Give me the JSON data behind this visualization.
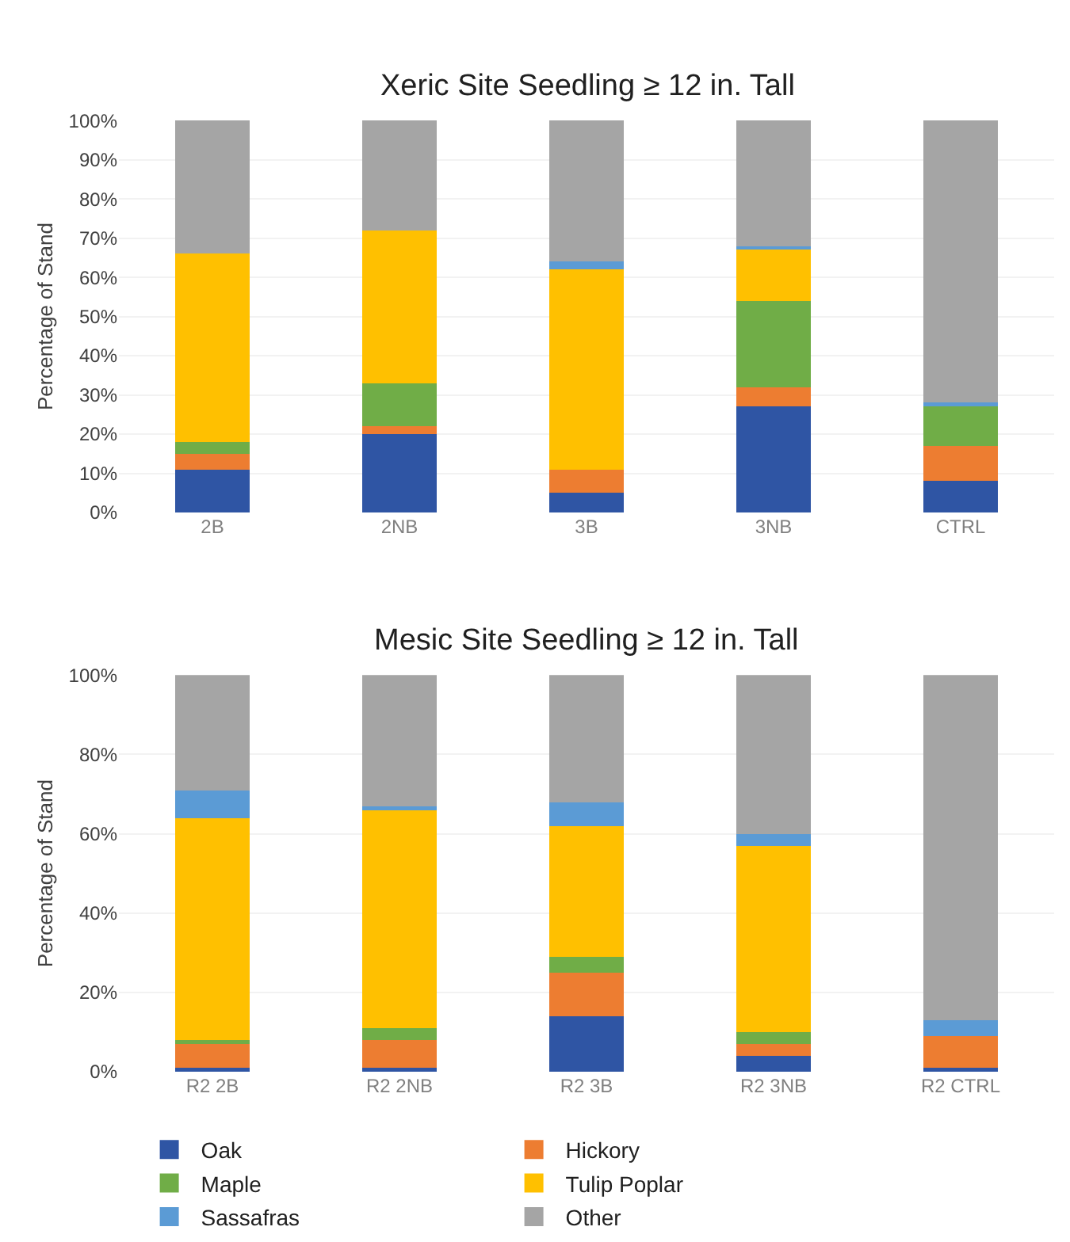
{
  "chart_data": [
    {
      "type": "bar",
      "stacked": true,
      "title": "Xeric Site Seedling ≥ 12 in. Tall",
      "ylabel": "Percentage of Stand",
      "categories": [
        "2B",
        "2NB",
        "3B",
        "3NB",
        "CTRL"
      ],
      "series": [
        {
          "name": "Oak",
          "color": "#2f55a4",
          "values": [
            11,
            20,
            5,
            27,
            8
          ]
        },
        {
          "name": "Hickory",
          "color": "#ed7d31",
          "values": [
            4,
            2,
            6,
            5,
            9
          ]
        },
        {
          "name": "Maple",
          "color": "#70ad47",
          "values": [
            3,
            11,
            0,
            22,
            10
          ]
        },
        {
          "name": "Tulip Poplar",
          "color": "#ffc000",
          "values": [
            48,
            39,
            51,
            13,
            0
          ]
        },
        {
          "name": "Sassafras",
          "color": "#5b9bd5",
          "values": [
            0,
            0,
            2,
            1,
            1
          ]
        },
        {
          "name": "Other",
          "color": "#a5a5a5",
          "values": [
            34,
            28,
            36,
            32,
            72
          ]
        }
      ],
      "ylim": [
        0,
        100
      ],
      "yticks": [
        {
          "value": 0,
          "label": "0%"
        },
        {
          "value": 10,
          "label": "10%"
        },
        {
          "value": 20,
          "label": "20%"
        },
        {
          "value": 30,
          "label": "30%"
        },
        {
          "value": 40,
          "label": "40%"
        },
        {
          "value": 50,
          "label": "50%"
        },
        {
          "value": 60,
          "label": "60%"
        },
        {
          "value": 70,
          "label": "70%"
        },
        {
          "value": 80,
          "label": "80%"
        },
        {
          "value": 90,
          "label": "90%"
        },
        {
          "value": 100,
          "label": "100%"
        }
      ],
      "grid": "y",
      "legend": "bottom"
    },
    {
      "type": "bar",
      "stacked": true,
      "title": "Mesic Site Seedling ≥ 12 in. Tall",
      "ylabel": "Percentage of Stand",
      "categories": [
        "R2 2B",
        "R2 2NB",
        "R2 3B",
        "R2 3NB",
        "R2 CTRL"
      ],
      "series": [
        {
          "name": "Oak",
          "color": "#2f55a4",
          "values": [
            1,
            1,
            14,
            4,
            1
          ]
        },
        {
          "name": "Hickory",
          "color": "#ed7d31",
          "values": [
            6,
            7,
            11,
            3,
            8
          ]
        },
        {
          "name": "Maple",
          "color": "#70ad47",
          "values": [
            1,
            3,
            4,
            3,
            0
          ]
        },
        {
          "name": "Tulip Poplar",
          "color": "#ffc000",
          "values": [
            56,
            55,
            33,
            47,
            0
          ]
        },
        {
          "name": "Sassafras",
          "color": "#5b9bd5",
          "values": [
            7,
            1,
            6,
            3,
            4
          ]
        },
        {
          "name": "Other",
          "color": "#a5a5a5",
          "values": [
            29,
            33,
            32,
            40,
            87
          ]
        }
      ],
      "ylim": [
        0,
        100
      ],
      "yticks": [
        {
          "value": 0,
          "label": "0%"
        },
        {
          "value": 20,
          "label": "20%"
        },
        {
          "value": 40,
          "label": "40%"
        },
        {
          "value": 60,
          "label": "60%"
        },
        {
          "value": 80,
          "label": "80%"
        },
        {
          "value": 100,
          "label": "100%"
        }
      ],
      "grid": "y",
      "legend": "bottom"
    }
  ]
}
